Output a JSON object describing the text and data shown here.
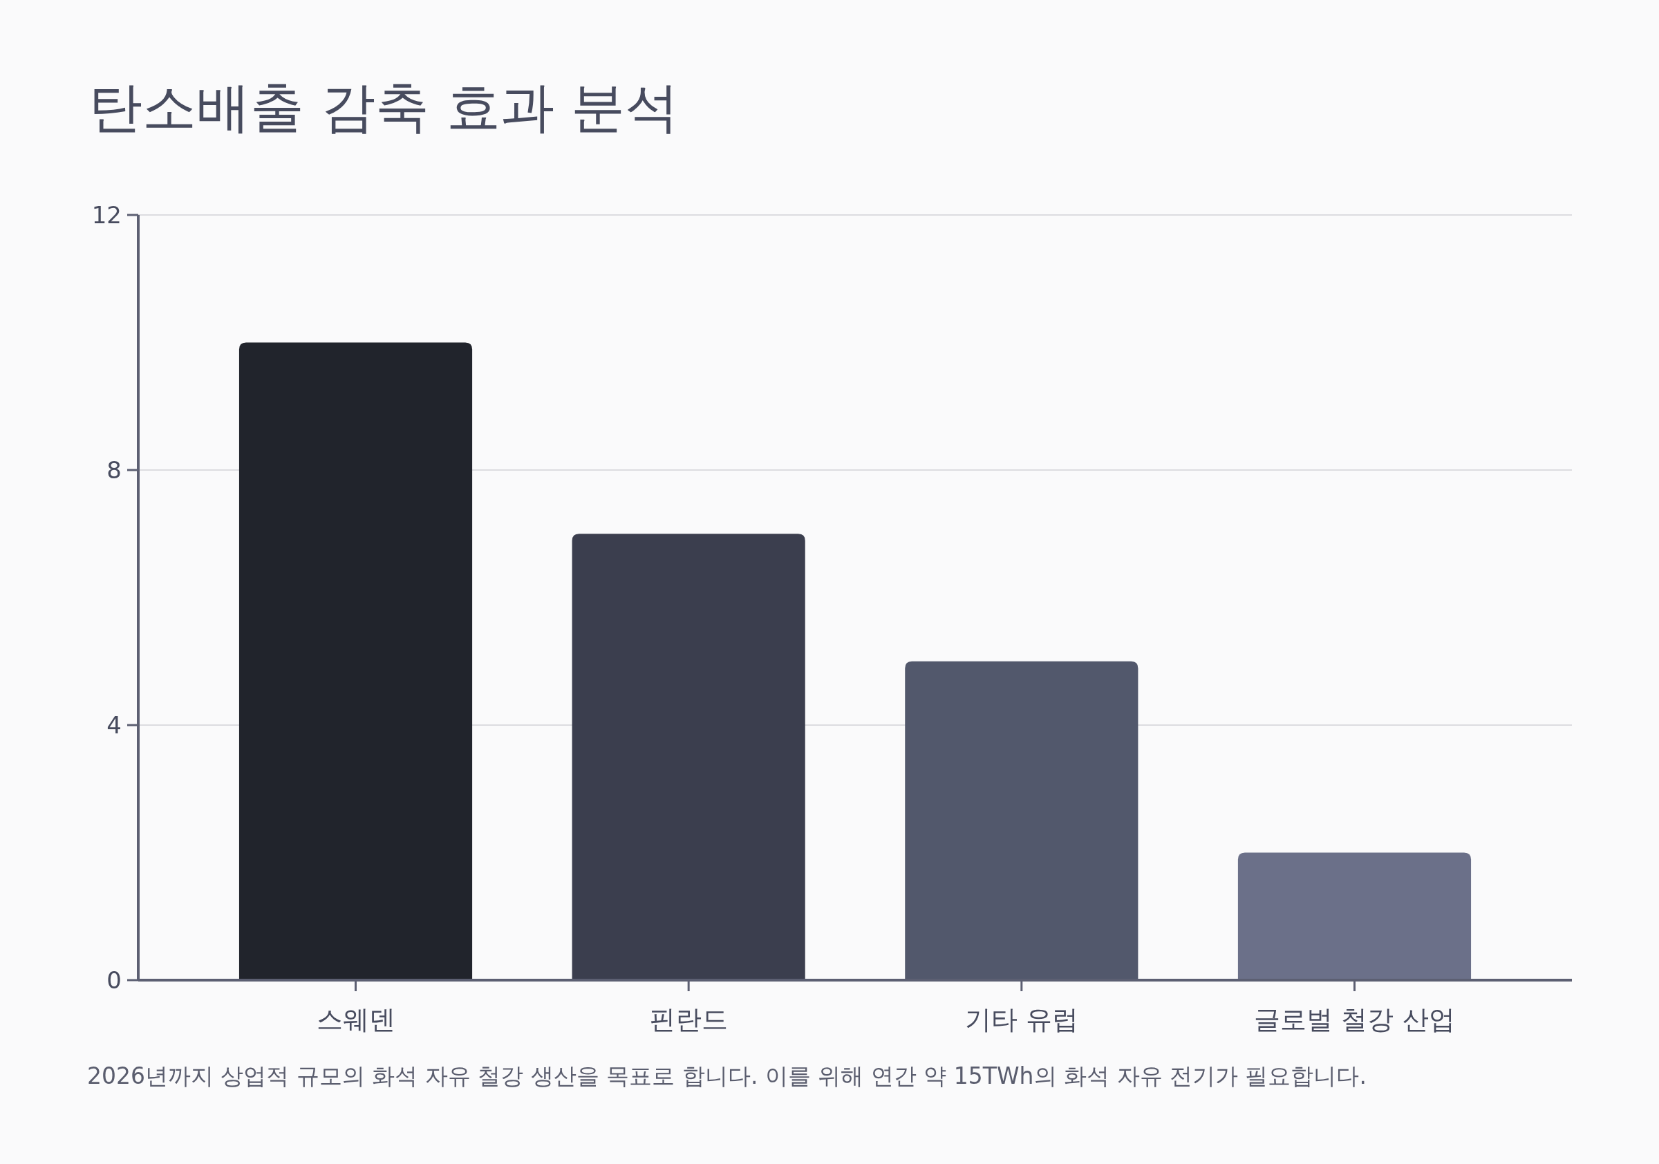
{
  "chart_data": {
    "type": "bar",
    "title": "탄소배출 감축 효과 분석",
    "categories": [
      "스웨덴",
      "핀란드",
      "기타 유럽",
      "글로벌 철강 산업"
    ],
    "values": [
      10,
      7,
      5,
      2
    ],
    "colors": [
      "#21242c",
      "#3b3e4e",
      "#52586c",
      "#6b7089"
    ],
    "ylim": [
      0,
      12
    ],
    "yticks": [
      0,
      4,
      8,
      12
    ],
    "grid": "y",
    "annotations": [
      "2026년까지 상업적 규모의 화석 자유 철강 생산을 목표로 합니다. 이를 위해 연간 약 15TWh의 화석 자유 전기가 필요합니다."
    ]
  }
}
